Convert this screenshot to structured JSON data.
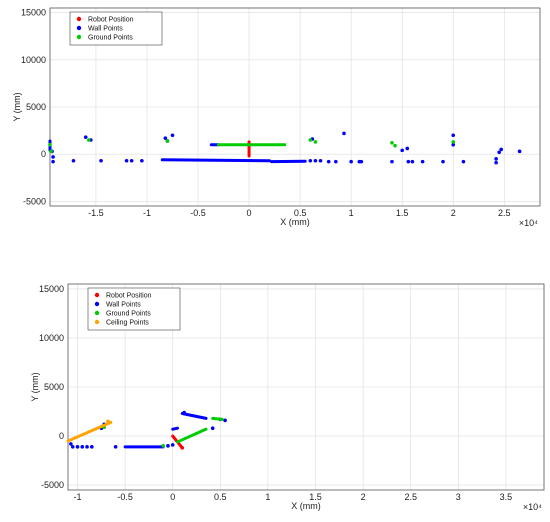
{
  "chart_data": [
    {
      "type": "scatter",
      "xlabel": "X (mm)",
      "ylabel": "Y (mm)",
      "x_exponent": "×10⁴",
      "xlim": [
        -1.95,
        2.85
      ],
      "ylim": [
        -5500,
        15500
      ],
      "xticks": [
        -1.5,
        -1,
        -0.5,
        0,
        0.5,
        1,
        1.5,
        2,
        2.5
      ],
      "xtick_labels": [
        "-1.5",
        "-1",
        "-0.5",
        "0",
        "0.5",
        "1",
        "1.5",
        "2",
        "2.5"
      ],
      "yticks": [
        -5000,
        0,
        5000,
        10000,
        15000
      ],
      "ytick_labels": [
        "-5000",
        "0",
        "5000",
        "10000",
        "15000"
      ],
      "grid": true,
      "legend_position": "top-left",
      "series": [
        {
          "name": "Robot Position",
          "color": "#ff0000",
          "segments": [
            [
              [
                0,
                -200
              ],
              [
                0,
                1300
              ]
            ]
          ],
          "points": [
            [
              0,
              1000
            ]
          ]
        },
        {
          "name": "Wall Points",
          "color": "#0000ff",
          "segments": [
            [
              [
                -1.95,
                400
              ],
              [
                -1.95,
                1400
              ]
            ],
            [
              [
                -0.85,
                -600
              ],
              [
                0.2,
                -700
              ]
            ],
            [
              [
                0.22,
                -800
              ],
              [
                0.55,
                -750
              ]
            ],
            [
              [
                -0.37,
                1000
              ],
              [
                -0.3,
                1000
              ]
            ]
          ],
          "points": [
            [
              -1.93,
              300
            ],
            [
              -1.92,
              -300
            ],
            [
              -1.92,
              -800
            ],
            [
              -1.6,
              1800
            ],
            [
              -1.55,
              1500
            ],
            [
              -1.72,
              -700
            ],
            [
              -1.45,
              -700
            ],
            [
              -1.2,
              -700
            ],
            [
              -1.15,
              -700
            ],
            [
              -1.05,
              -700
            ],
            [
              -0.82,
              1700
            ],
            [
              -0.75,
              2000
            ],
            [
              -0.8,
              1400
            ],
            [
              0.6,
              -700
            ],
            [
              0.65,
              -700
            ],
            [
              0.62,
              1600
            ],
            [
              0.7,
              -700
            ],
            [
              0.78,
              -800
            ],
            [
              0.85,
              -800
            ],
            [
              0.93,
              2200
            ],
            [
              1.0,
              -800
            ],
            [
              1.08,
              -800
            ],
            [
              1.1,
              -800
            ],
            [
              1.4,
              -800
            ],
            [
              1.5,
              400
            ],
            [
              1.55,
              600
            ],
            [
              1.56,
              -800
            ],
            [
              1.6,
              -800
            ],
            [
              1.7,
              -800
            ],
            [
              1.9,
              -800
            ],
            [
              2.0,
              2000
            ],
            [
              2.0,
              1000
            ],
            [
              2.1,
              -800
            ],
            [
              2.42,
              -500
            ],
            [
              2.42,
              -900
            ],
            [
              2.45,
              200
            ],
            [
              2.47,
              500
            ],
            [
              2.65,
              300
            ]
          ]
        },
        {
          "name": "Ground Points",
          "color": "#00cc00",
          "segments": [
            [
              [
                -0.3,
                1000
              ],
              [
                0.35,
                1000
              ]
            ]
          ],
          "points": [
            [
              -1.95,
              1000
            ],
            [
              -1.94,
              300
            ],
            [
              -1.57,
              1500
            ],
            [
              -0.8,
              1400
            ],
            [
              0.6,
              1500
            ],
            [
              0.65,
              1300
            ],
            [
              1.4,
              1200
            ],
            [
              1.43,
              900
            ],
            [
              2.0,
              1300
            ]
          ]
        }
      ]
    },
    {
      "type": "scatter",
      "xlabel": "X (mm)",
      "ylabel": "Y (mm)",
      "x_exponent": "×10⁴",
      "xlim": [
        -1.1,
        3.9
      ],
      "ylim": [
        -5500,
        15500
      ],
      "xticks": [
        -1,
        -0.5,
        0,
        0.5,
        1,
        1.5,
        2,
        2.5,
        3,
        3.5
      ],
      "xtick_labels": [
        "-1",
        "-0.5",
        "0",
        "0.5",
        "1",
        "1.5",
        "2",
        "2.5",
        "3",
        "3.5"
      ],
      "yticks": [
        -5000,
        0,
        5000,
        10000,
        15000
      ],
      "ytick_labels": [
        "-5000",
        "0",
        "5000",
        "10000",
        "15000"
      ],
      "grid": true,
      "legend_position": "top-left",
      "series": [
        {
          "name": "Robot Position",
          "color": "#ff0000",
          "segments": [
            [
              [
                0,
                0
              ],
              [
                0.1,
                -1200
              ]
            ]
          ],
          "points": [
            [
              0.1,
              -1200
            ]
          ]
        },
        {
          "name": "Wall Points",
          "color": "#0000ff",
          "segments": [
            [
              [
                -0.5,
                -1100
              ],
              [
                -0.1,
                -1100
              ]
            ],
            [
              [
                0.1,
                2300
              ],
              [
                0.35,
                1800
              ]
            ],
            [
              [
                0.0,
                700
              ],
              [
                0.05,
                800
              ]
            ]
          ],
          "points": [
            [
              -1.07,
              -800
            ],
            [
              -1.05,
              -1100
            ],
            [
              -1.0,
              -1100
            ],
            [
              -0.95,
              -1100
            ],
            [
              -0.9,
              -1100
            ],
            [
              -0.85,
              -1100
            ],
            [
              -0.75,
              800
            ],
            [
              -0.72,
              1200
            ],
            [
              -0.6,
              -1100
            ],
            [
              -0.05,
              -1000
            ],
            [
              0.0,
              -900
            ],
            [
              0.12,
              2400
            ],
            [
              0.42,
              800
            ],
            [
              0.5,
              1700
            ],
            [
              0.55,
              1600
            ]
          ]
        },
        {
          "name": "Ground Points",
          "color": "#00cc00",
          "segments": [
            [
              [
                0.05,
                -600
              ],
              [
                0.35,
                700
              ]
            ],
            [
              [
                0.42,
                1800
              ],
              [
                0.52,
                1700
              ]
            ]
          ],
          "points": [
            [
              -0.72,
              900
            ],
            [
              -0.1,
              -1000
            ]
          ]
        },
        {
          "name": "Ceiling Points",
          "color": "#ffa500",
          "segments": [
            [
              [
                -1.1,
                -500
              ],
              [
                -0.65,
                1400
              ]
            ]
          ],
          "points": [
            [
              -0.68,
              1500
            ]
          ]
        }
      ]
    }
  ]
}
